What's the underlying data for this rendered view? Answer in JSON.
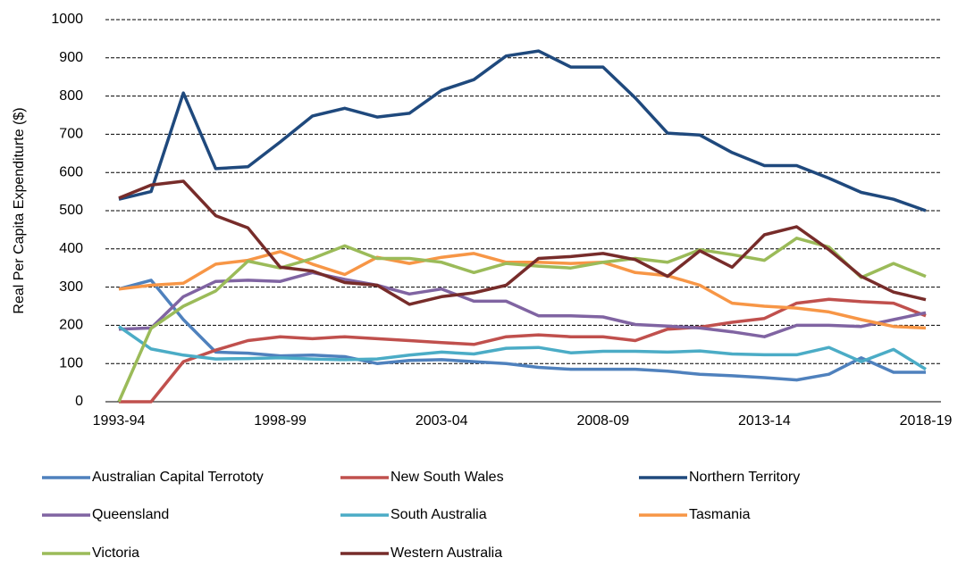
{
  "chart_data": {
    "type": "line",
    "y_label": "Real Per Capita Expenditurte ($)",
    "categories": [
      "1993-94",
      null,
      null,
      null,
      null,
      "1998-99",
      null,
      null,
      null,
      null,
      "2003-04",
      null,
      null,
      null,
      null,
      "2008-09",
      null,
      null,
      null,
      null,
      "2013-14",
      null,
      null,
      null,
      null,
      "2018-19"
    ],
    "ylim": [
      0,
      1000
    ],
    "yticks": [
      0,
      100,
      200,
      300,
      400,
      500,
      600,
      700,
      800,
      900,
      1000
    ],
    "grid": true,
    "legend": "bottom",
    "series": [
      {
        "name": "Australian Capital Terrototy",
        "color": "#4f81bd",
        "values": [
          295,
          318,
          215,
          130,
          127,
          120,
          122,
          118,
          100,
          108,
          110,
          105,
          100,
          90,
          85,
          85,
          85,
          80,
          72,
          68,
          63,
          57,
          72,
          115,
          77,
          77
        ]
      },
      {
        "name": "New South Wales",
        "color": "#c0504d",
        "values": [
          0,
          0,
          105,
          135,
          160,
          170,
          165,
          170,
          165,
          160,
          155,
          150,
          170,
          175,
          170,
          170,
          160,
          190,
          195,
          208,
          218,
          258,
          268,
          262,
          258,
          225
        ]
      },
      {
        "name": "Northern Territory",
        "color": "#1f497d",
        "values": [
          530,
          550,
          808,
          610,
          615,
          680,
          748,
          768,
          745,
          755,
          815,
          843,
          905,
          918,
          876,
          876,
          795,
          703,
          698,
          652,
          618,
          618,
          585,
          548,
          530,
          500
        ]
      },
      {
        "name": "Queensland",
        "color": "#8064a2",
        "values": [
          190,
          193,
          275,
          315,
          318,
          315,
          338,
          320,
          305,
          282,
          295,
          263,
          263,
          225,
          225,
          222,
          202,
          198,
          193,
          183,
          170,
          200,
          200,
          197,
          215,
          233
        ]
      },
      {
        "name": "South Australia",
        "color": "#4bacc6",
        "values": [
          197,
          138,
          122,
          112,
          113,
          115,
          112,
          110,
          112,
          122,
          130,
          125,
          140,
          142,
          128,
          132,
          132,
          130,
          133,
          125,
          123,
          123,
          142,
          105,
          137,
          85
        ]
      },
      {
        "name": "Tasmania",
        "color": "#f79646",
        "values": [
          295,
          305,
          310,
          360,
          370,
          393,
          360,
          333,
          378,
          362,
          378,
          388,
          365,
          365,
          362,
          365,
          338,
          330,
          305,
          258,
          250,
          245,
          235,
          215,
          197,
          193
        ]
      },
      {
        "name": "Victoria",
        "color": "#9bbb59",
        "values": [
          0,
          192,
          250,
          290,
          368,
          350,
          375,
          408,
          375,
          375,
          365,
          338,
          362,
          355,
          350,
          365,
          375,
          365,
          398,
          385,
          370,
          428,
          405,
          325,
          362,
          328
        ]
      },
      {
        "name": "Western Australia",
        "color": "#772c2a",
        "values": [
          533,
          567,
          577,
          487,
          455,
          352,
          342,
          312,
          305,
          255,
          275,
          285,
          305,
          375,
          380,
          388,
          372,
          328,
          395,
          352,
          437,
          458,
          398,
          328,
          287,
          267
        ]
      }
    ]
  }
}
